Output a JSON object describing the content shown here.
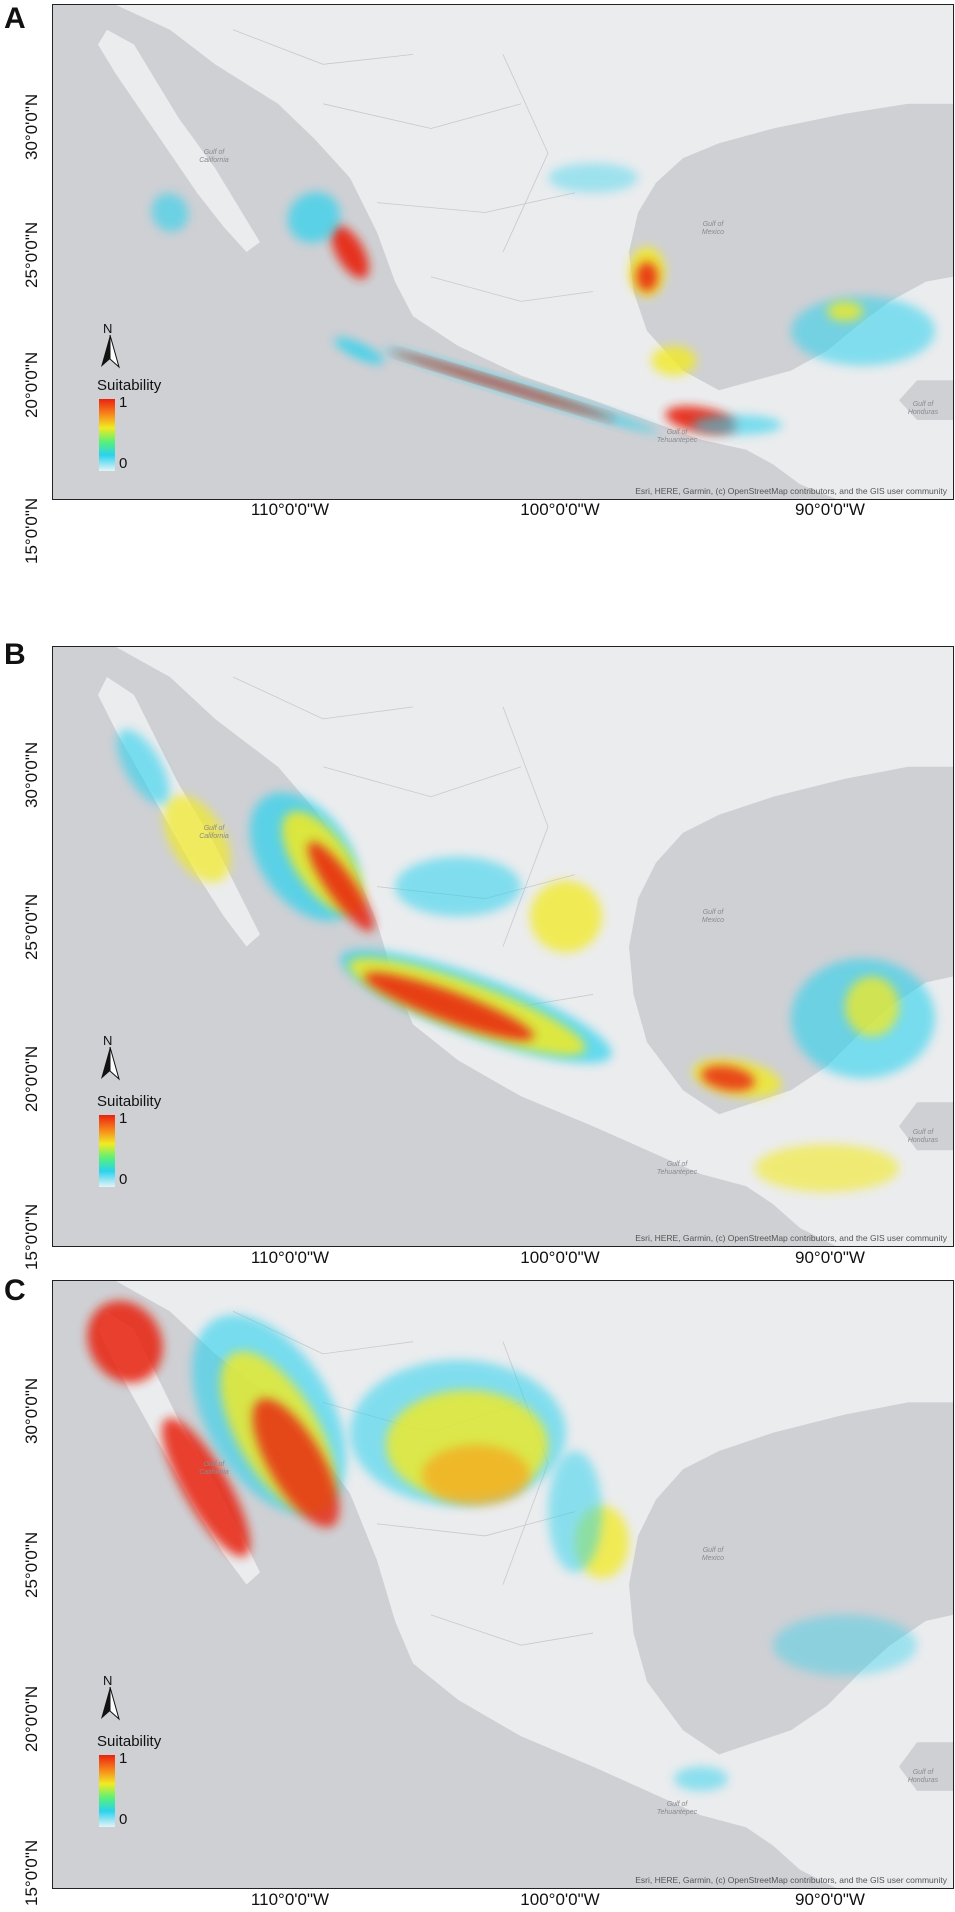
{
  "panels": [
    {
      "letter": "A",
      "lat_labels": [
        "30°0'0\"N",
        "25°0'0\"N",
        "20°0'0\"N",
        "15°0'0\"N"
      ],
      "lon_labels": [
        "110°0'0\"W",
        "100°0'0\"W",
        "90°0'0\"W"
      ],
      "legend": {
        "title": "Suitability",
        "max": "1",
        "min": "0"
      },
      "north": "N",
      "attribution": "Esri, HERE, Garmin, (c) OpenStreetMap contributors, and the GIS user community",
      "pattern": "coastal-pacific"
    },
    {
      "letter": "B",
      "lat_labels": [
        "30°0'0\"N",
        "25°0'0\"N",
        "20°0'0\"N",
        "15°0'0\"N"
      ],
      "lon_labels": [
        "110°0'0\"W",
        "100°0'0\"W",
        "90°0'0\"W"
      ],
      "legend": {
        "title": "Suitability",
        "max": "1",
        "min": "0"
      },
      "north": "N",
      "attribution": "Esri, HERE, Garmin, (c) OpenStreetMap contributors, and the GIS user community",
      "pattern": "sierra-madre"
    },
    {
      "letter": "C",
      "lat_labels": [
        "30°0'0\"N",
        "25°0'0\"N",
        "20°0'0\"N",
        "15°0'0\"N"
      ],
      "lon_labels": [
        "110°0'0\"W",
        "100°0'0\"W",
        "90°0'0\"W"
      ],
      "legend": {
        "title": "Suitability",
        "max": "1",
        "min": "0"
      },
      "north": "N",
      "attribution": "Esri, HERE, Garmin, (c) OpenStreetMap contributors, and the GIS user community",
      "pattern": "northern-arid"
    }
  ],
  "map_labels": {
    "gulf_california": "Gulf of California",
    "gulf_mexico": "Gulf of Mexico",
    "gulf_tehuantepec": "Gulf of Tehuantepec",
    "gulf_honduras": "Gulf of Honduras"
  },
  "colors": {
    "ocean": "#cfd0d4",
    "land": "#ebecee",
    "border": "#c8c9cd",
    "suit_low": "#2ad2ee",
    "suit_mid": "#f2ea22",
    "suit_high": "#e8220f"
  }
}
